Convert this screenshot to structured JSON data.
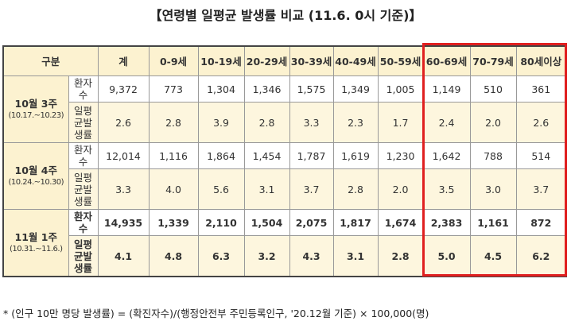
{
  "title": "【연령별 일평균 발생률 비교 (11.6. 0시 기준)】",
  "table": {
    "header": [
      "구분",
      "계",
      "0-9세",
      "10-19세",
      "20-29세",
      "30-39세",
      "40-49세",
      "50-59세",
      "60-69세",
      "70-79세",
      "80세이상"
    ],
    "groups": [
      {
        "label": "10월 3주",
        "period": "(10.17.~10.23)",
        "bold": false,
        "rows": [
          {
            "label": "환자수",
            "values": [
              "9,372",
              "773",
              "1,304",
              "1,346",
              "1,575",
              "1,349",
              "1,005",
              "1,149",
              "510",
              "361"
            ]
          },
          {
            "label": "일평균발생률",
            "values": [
              "2.6",
              "2.8",
              "3.9",
              "2.8",
              "3.3",
              "2.3",
              "1.7",
              "2.4",
              "2.0",
              "2.6"
            ]
          }
        ]
      },
      {
        "label": "10월 4주",
        "period": "(10.24.~10.30)",
        "bold": false,
        "rows": [
          {
            "label": "환자수",
            "values": [
              "12,014",
              "1,116",
              "1,864",
              "1,454",
              "1,787",
              "1,619",
              "1,230",
              "1,642",
              "788",
              "514"
            ]
          },
          {
            "label": "일평균발생률",
            "values": [
              "3.3",
              "4.0",
              "5.6",
              "3.1",
              "3.7",
              "2.8",
              "2.0",
              "3.5",
              "3.0",
              "3.7"
            ]
          }
        ]
      },
      {
        "label": "11월 1주",
        "period": "(10.31.~11.6.)",
        "bold": true,
        "rows": [
          {
            "label": "환자수",
            "values": [
              "14,935",
              "1,339",
              "2,110",
              "1,504",
              "2,075",
              "1,817",
              "1,674",
              "2,383",
              "1,161",
              "872"
            ]
          },
          {
            "label": "일평균발생률",
            "values": [
              "4.1",
              "4.8",
              "6.3",
              "3.2",
              "4.3",
              "3.1",
              "2.8",
              "5.0",
              "4.5",
              "6.2"
            ]
          }
        ]
      }
    ]
  },
  "footnote": "* (인구 10만 명당 발생률) = (확진자수)/(행정안전부 주민등록인구, '20.12월 기준) × 100,000(명)"
}
